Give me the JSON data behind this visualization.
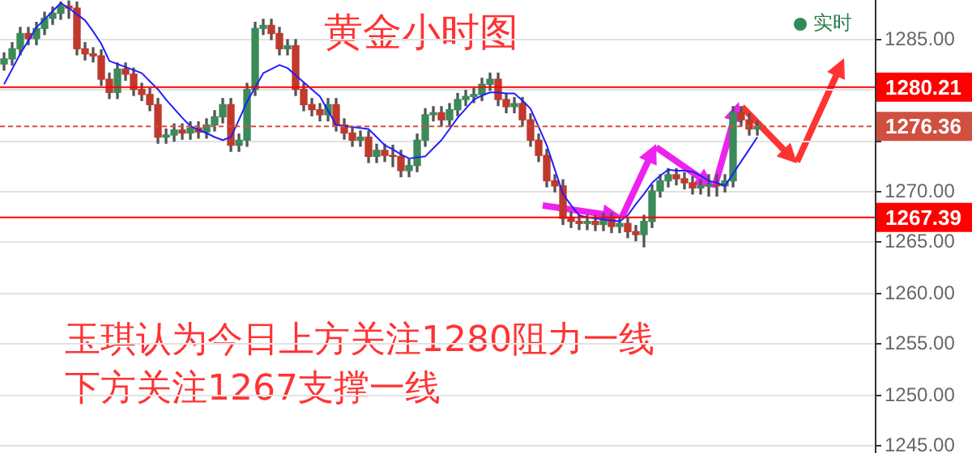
{
  "chart_data": {
    "type": "candlestick",
    "title": "黄金小时图",
    "categories": [
      null,
      null,
      null,
      null,
      null,
      null,
      null,
      null,
      null,
      null,
      null,
      null,
      null,
      null,
      null,
      null,
      null,
      null,
      null,
      null,
      null,
      null,
      null,
      null,
      null,
      null,
      null,
      null,
      null,
      null,
      null,
      null,
      null,
      null,
      null,
      null,
      null,
      null,
      null,
      null,
      null,
      null,
      null,
      null,
      null,
      null,
      null,
      null,
      null,
      null,
      null,
      null,
      null,
      null,
      null,
      null,
      null,
      null,
      null,
      null,
      null,
      null,
      null,
      null,
      null,
      null,
      null,
      null,
      null,
      null,
      null,
      null,
      null,
      null,
      null,
      null,
      null,
      null,
      null,
      null,
      null,
      null,
      null,
      null,
      null,
      null,
      null,
      null,
      null,
      null,
      null,
      null,
      null,
      null
    ],
    "ohlc": [
      [
        1282.5,
        1283.6,
        1281.9,
        1283
      ],
      [
        1283,
        1284.6,
        1282.4,
        1284
      ],
      [
        1284,
        1286.1,
        1283.4,
        1285.5
      ],
      [
        1285.5,
        1286.1,
        1284.4,
        1285
      ],
      [
        1285,
        1286.6,
        1284.4,
        1286
      ],
      [
        1286,
        1287.6,
        1285.4,
        1287
      ],
      [
        1287,
        1288.1,
        1286.4,
        1287.5
      ],
      [
        1287.5,
        1288.6,
        1286.9,
        1288.2
      ],
      [
        1288.2,
        1288.7,
        1287,
        1288
      ],
      [
        1288,
        1288.6,
        1283.4,
        1284
      ],
      [
        1284,
        1284.6,
        1282.9,
        1283.5
      ],
      [
        1283.5,
        1284.1,
        1282.7,
        1283.3
      ],
      [
        1283.3,
        1283.9,
        1280.4,
        1281
      ],
      [
        1281,
        1281.6,
        1279.1,
        1279.7
      ],
      [
        1279.7,
        1282.6,
        1279.1,
        1282
      ],
      [
        1282,
        1282.6,
        1280.9,
        1281.5
      ],
      [
        1281.5,
        1282.1,
        1279.4,
        1280
      ],
      [
        1280,
        1280.6,
        1278.9,
        1279.5
      ],
      [
        1279.5,
        1280.1,
        1277.9,
        1278.5
      ],
      [
        1278.5,
        1279.1,
        1274.7,
        1275.3
      ],
      [
        1275.3,
        1276.1,
        1274.7,
        1275.5
      ],
      [
        1275.5,
        1276.6,
        1274.9,
        1276
      ],
      [
        1276,
        1276.6,
        1275.1,
        1275.7
      ],
      [
        1275.7,
        1276.8,
        1275.1,
        1276.2
      ],
      [
        1276.2,
        1276.8,
        1275.2,
        1275.8
      ],
      [
        1275.8,
        1277.1,
        1275.2,
        1276.5
      ],
      [
        1276.5,
        1277.9,
        1275.9,
        1277.3
      ],
      [
        1277.3,
        1279.1,
        1276.7,
        1278.5
      ],
      [
        1278.5,
        1279.1,
        1273.9,
        1274.5
      ],
      [
        1274.5,
        1275.6,
        1273.9,
        1275
      ],
      [
        1275,
        1280.6,
        1274.4,
        1280
      ],
      [
        1280,
        1286.6,
        1279.4,
        1286
      ],
      [
        1286,
        1286.9,
        1285.4,
        1286.3
      ],
      [
        1286.3,
        1286.9,
        1284.9,
        1285.5
      ],
      [
        1285.5,
        1286.1,
        1283.4,
        1284
      ],
      [
        1284,
        1284.9,
        1283.4,
        1284.3
      ],
      [
        1284.3,
        1284.9,
        1279.4,
        1280
      ],
      [
        1280,
        1280.6,
        1277.9,
        1278.5
      ],
      [
        1278.5,
        1279.1,
        1277.4,
        1278
      ],
      [
        1278,
        1278.6,
        1276.9,
        1277.5
      ],
      [
        1277.5,
        1279.1,
        1276.9,
        1278.5
      ],
      [
        1278.5,
        1279.1,
        1275.9,
        1276.5
      ],
      [
        1276.5,
        1277.1,
        1275.1,
        1275.7
      ],
      [
        1275.7,
        1276.3,
        1274.4,
        1275
      ],
      [
        1275,
        1275.9,
        1274.4,
        1275.3
      ],
      [
        1275.3,
        1275.9,
        1272.8,
        1273.4
      ],
      [
        1273.4,
        1274.6,
        1272.8,
        1274
      ],
      [
        1274,
        1274.6,
        1272.9,
        1273.5
      ],
      [
        1273.5,
        1274.5,
        1272.4,
        1273.4
      ],
      [
        1273.4,
        1274,
        1271.4,
        1272
      ],
      [
        1272,
        1273.1,
        1271.4,
        1272.5
      ],
      [
        1272.5,
        1275.6,
        1271.9,
        1275
      ],
      [
        1275,
        1278.1,
        1274.4,
        1277.5
      ],
      [
        1277.5,
        1278.3,
        1276.9,
        1277.7
      ],
      [
        1277.7,
        1278.3,
        1276.4,
        1277
      ],
      [
        1277,
        1278.6,
        1276.4,
        1278
      ],
      [
        1278,
        1279.6,
        1277.4,
        1279
      ],
      [
        1279,
        1279.9,
        1278.4,
        1279.3
      ],
      [
        1279.3,
        1280.1,
        1278.7,
        1279.5
      ],
      [
        1279.5,
        1281.1,
        1278.9,
        1280.5
      ],
      [
        1280.5,
        1281.6,
        1279.9,
        1281
      ],
      [
        1281,
        1281.6,
        1278.4,
        1279
      ],
      [
        1279,
        1279.6,
        1277.7,
        1278.3
      ],
      [
        1278.3,
        1279.2,
        1277.7,
        1278.6
      ],
      [
        1278.6,
        1279.2,
        1276.4,
        1277
      ],
      [
        1277,
        1277.6,
        1274.4,
        1275
      ],
      [
        1275,
        1275.6,
        1272.9,
        1273.5
      ],
      [
        1273.5,
        1274.1,
        1270.4,
        1271
      ],
      [
        1271,
        1271.6,
        1269.9,
        1270.5
      ],
      [
        1270.5,
        1271.1,
        1266.7,
        1267.3
      ],
      [
        1267.3,
        1267.9,
        1266.4,
        1267
      ],
      [
        1267,
        1267.6,
        1266.2,
        1266.8
      ],
      [
        1266.8,
        1267.6,
        1266.2,
        1267
      ],
      [
        1267,
        1267.6,
        1266.1,
        1266.7
      ],
      [
        1266.7,
        1267.8,
        1266.1,
        1267.2
      ],
      [
        1267.2,
        1267.8,
        1265.9,
        1266.5
      ],
      [
        1266.5,
        1267.4,
        1265.9,
        1266.8
      ],
      [
        1266.8,
        1267.4,
        1265.4,
        1266
      ],
      [
        1266,
        1266.6,
        1265.1,
        1265.7
      ],
      [
        1265.7,
        1267.6,
        1264.5,
        1267
      ],
      [
        1267,
        1270.6,
        1266.4,
        1270
      ],
      [
        1270,
        1271.6,
        1269.4,
        1271
      ],
      [
        1271,
        1272.2,
        1270.4,
        1271.6
      ],
      [
        1271.6,
        1272.2,
        1270.6,
        1271.2
      ],
      [
        1271.2,
        1271.8,
        1270.2,
        1270.8
      ],
      [
        1270.8,
        1271.4,
        1269.7,
        1270.3
      ],
      [
        1270.3,
        1271.1,
        1269.7,
        1270.5
      ],
      [
        1270.5,
        1271.6,
        1269.5,
        1270.6
      ],
      [
        1270.6,
        1271.6,
        1269.5,
        1270.5
      ],
      [
        1270.5,
        1271.6,
        1269.9,
        1271
      ],
      [
        1271,
        1278.3,
        1270.4,
        1277.7
      ],
      [
        1277.7,
        1278.3,
        1276.4,
        1277
      ],
      [
        1277,
        1277.6,
        1275.5,
        1276.1
      ],
      [
        1276.1,
        1276.9,
        1275.5,
        1276.36
      ]
    ],
    "series": [
      {
        "type": "line",
        "color": "#1f1fff",
        "values": [
          1280.5,
          1282,
          1283.5,
          1284.8,
          1286.1,
          1286.9,
          1287.7,
          1288.5,
          1288,
          1287.4,
          1286.8,
          1285.7,
          1284.5,
          1282.8,
          1282.5,
          1282.2,
          1281.9,
          1281.6,
          1280.8,
          1280,
          1279,
          1278.1,
          1277.2,
          1276.4,
          1276,
          1275.7,
          1275.3,
          1275,
          1275.3,
          1277,
          1278.8,
          1280.2,
          1281.6,
          1282,
          1282.4,
          1282.1,
          1281.4,
          1280.7,
          1280,
          1279.3,
          1277.9,
          1276.5,
          1276.4,
          1276.3,
          1276.2,
          1276.1,
          1275.3,
          1274.5,
          1274.1,
          1273.6,
          1273.2,
          1273.3,
          1273.4,
          1274.2,
          1275,
          1276.1,
          1277.2,
          1278.1,
          1279,
          1279.4,
          1279.7,
          1279.7,
          1279.6,
          1279.6,
          1278.9,
          1278.1,
          1276.3,
          1274.5,
          1272.1,
          1269.7,
          1268.6,
          1267.6,
          1267.4,
          1267.3,
          1267.2,
          1267.1,
          1267,
          1267.6,
          1268.7,
          1269.7,
          1270.8,
          1271.5,
          1272.1,
          1272,
          1272,
          1271.9,
          1271.5,
          1271,
          1270.8,
          1270.5,
          1271.7,
          1272.9,
          1274.1,
          1275.3
        ]
      }
    ],
    "ylim": [
      1244.2,
      1288.8
    ],
    "yticks": [
      {
        "value": 1245,
        "label": "1245.00"
      },
      {
        "value": 1250,
        "label": "1250.00"
      },
      {
        "value": 1255,
        "label": "1255.00"
      },
      {
        "value": 1260,
        "label": "1260.00"
      },
      {
        "value": 1265,
        "label": "1265.00"
      },
      {
        "value": 1270,
        "label": "1270.00"
      },
      {
        "value": 1275,
        "label": null
      },
      {
        "value": 1280,
        "label": null
      },
      {
        "value": 1285,
        "label": "1285.00"
      }
    ],
    "ref_lines": [
      {
        "axis": "y",
        "value": 1280.21,
        "label": "1280.21",
        "color": "#ff0000",
        "line_style": "solid"
      },
      {
        "axis": "y",
        "value": 1276.36,
        "label": "1276.36",
        "color": "#d05040",
        "line_style": "dashed"
      },
      {
        "axis": "y",
        "value": 1267.39,
        "label": "1267.39",
        "color": "#ff0000",
        "line_style": "solid"
      }
    ],
    "annotations": [
      "实时",
      "玉琪认为今日上方关注1280阻力一线",
      "下方关注1267支撑一线"
    ],
    "grid": "y",
    "legend": false,
    "tick_labels": "y"
  }
}
